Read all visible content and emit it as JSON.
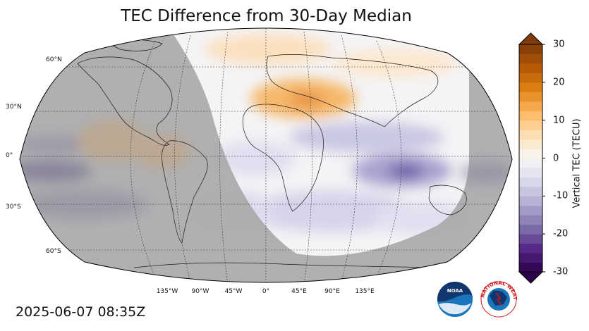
{
  "title": "TEC Difference from 30-Day Median",
  "timestamp": "2025-06-07 08:35Z",
  "map": {
    "projection": "Robinson",
    "lat_labels": [
      "60°N",
      "30°N",
      "0°",
      "30°S",
      "60°S"
    ],
    "lon_labels": [
      "135°W",
      "90°W",
      "45°W",
      "0°",
      "45°E",
      "90°E",
      "135°E"
    ],
    "night_color": "#a9aaab",
    "features": [
      {
        "label": "positive anomaly over Europe / Mediterranean",
        "sign": "positive"
      },
      {
        "label": "negative anomaly over Indian Ocean / Indonesia",
        "sign": "negative"
      },
      {
        "label": "negative anomaly west of South America",
        "sign": "negative"
      }
    ]
  },
  "colorbar": {
    "label": "Vertical TEC (TECU)",
    "min": -30,
    "max": 30,
    "ticks": [
      "30",
      "20",
      "10",
      "0",
      "-10",
      "-20",
      "-30"
    ],
    "colormap": "PuOr_r",
    "colors": [
      "#2d004b",
      "#542788",
      "#8073ac",
      "#b2abd2",
      "#d8daeb",
      "#f7f7f7",
      "#fee0b6",
      "#fdb863",
      "#e08214",
      "#b35806",
      "#7f3b08"
    ]
  },
  "logos": {
    "noaa_text": "NOAA",
    "nws_text": "NATIONAL WEATHER SERVICE"
  }
}
